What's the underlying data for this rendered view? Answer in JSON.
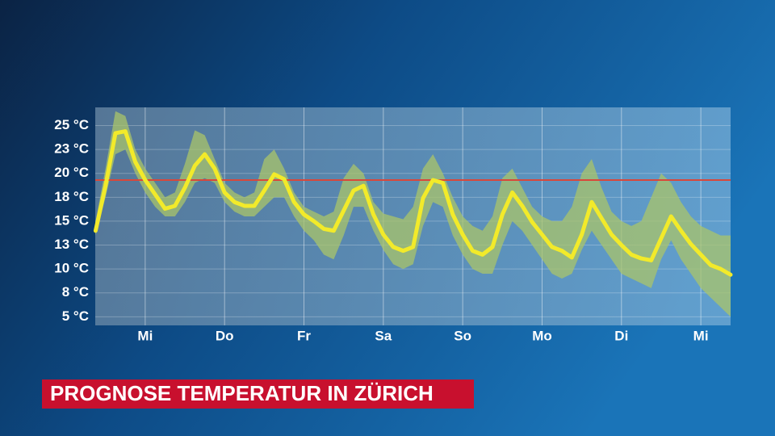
{
  "chart_data": {
    "type": "line",
    "title": "PROGNOSE TEMPERATUR IN ZÜRICH",
    "x": [
      9,
      12,
      15,
      18,
      21,
      24,
      27,
      30,
      33,
      36,
      39,
      42,
      45,
      48,
      51,
      54,
      57,
      60,
      63,
      66,
      69,
      72,
      75,
      78,
      81,
      84,
      87,
      90,
      93,
      96,
      99,
      102,
      105,
      108,
      111,
      114,
      117,
      120,
      123,
      126,
      129,
      132,
      135,
      138,
      141,
      144,
      147,
      150,
      153,
      156,
      159,
      162,
      165,
      168,
      171,
      174,
      177,
      180,
      183,
      186,
      189,
      192,
      195,
      198,
      201
    ],
    "xlim": [
      8.9,
      201
    ],
    "xticks": [
      {
        "value": 24,
        "label": "Mi"
      },
      {
        "value": 48,
        "label": "Do"
      },
      {
        "value": 72,
        "label": "Fr"
      },
      {
        "value": 96,
        "label": "Sa"
      },
      {
        "value": 120,
        "label": "So"
      },
      {
        "value": 144,
        "label": "Mo"
      },
      {
        "value": 168,
        "label": "Di"
      },
      {
        "value": 192,
        "label": "Mi"
      }
    ],
    "ylim": [
      4.1,
      26.9
    ],
    "yticks": [
      {
        "value": 25,
        "label": "25 °C"
      },
      {
        "value": 22.5,
        "label": "23 °C"
      },
      {
        "value": 20,
        "label": "20 °C"
      },
      {
        "value": 17.5,
        "label": "18 °C"
      },
      {
        "value": 15,
        "label": "15 °C"
      },
      {
        "value": 12.5,
        "label": "13 °C"
      },
      {
        "value": 10,
        "label": "10 °C"
      },
      {
        "value": 7.5,
        "label": "8 °C"
      },
      {
        "value": 5,
        "label": "5 °C"
      }
    ],
    "grid": true,
    "series": [
      {
        "color": "#f2ea2a",
        "values": [
          14.0,
          18.7,
          24.2,
          24.4,
          21.2,
          19.3,
          17.8,
          16.3,
          16.6,
          18.5,
          20.8,
          22.0,
          20.5,
          18.0,
          17.0,
          16.6,
          16.6,
          18.2,
          19.9,
          19.4,
          17.0,
          15.7,
          15.0,
          14.2,
          14.0,
          16.1,
          18.2,
          18.7,
          15.7,
          13.6,
          12.3,
          11.9,
          12.3,
          17.4,
          19.3,
          19.0,
          15.7,
          13.6,
          11.9,
          11.5,
          12.3,
          15.7,
          18.0,
          16.6,
          14.9,
          13.6,
          12.3,
          11.9,
          11.2,
          13.6,
          17.0,
          15.3,
          13.6,
          12.5,
          11.5,
          11.1,
          10.9,
          13.2,
          15.5,
          14.0,
          12.6,
          11.5,
          10.4,
          10.0,
          9.4
        ]
      }
    ],
    "band": {
      "color": "#a9c46a",
      "upper": [
        15.0,
        20.5,
        26.5,
        26.0,
        22.5,
        20.5,
        19.0,
        17.5,
        18.0,
        21.0,
        24.5,
        24.0,
        21.5,
        19.0,
        18.0,
        17.5,
        18.0,
        21.5,
        22.5,
        20.5,
        18.0,
        16.5,
        16.0,
        15.5,
        16.0,
        19.5,
        21.0,
        20.0,
        17.0,
        15.8,
        15.5,
        15.2,
        16.5,
        20.5,
        22.0,
        20.0,
        17.5,
        15.5,
        14.5,
        14.0,
        15.5,
        19.5,
        20.5,
        18.5,
        16.5,
        15.5,
        15.0,
        15.0,
        16.5,
        20.0,
        21.5,
        18.5,
        16.0,
        15.0,
        14.5,
        15.0,
        17.5,
        20.0,
        19.0,
        17.0,
        15.5,
        14.5,
        14.0,
        13.5,
        13.5
      ],
      "lower": [
        13.5,
        17.5,
        22.0,
        22.5,
        20.0,
        18.0,
        16.5,
        15.5,
        15.5,
        17.0,
        19.0,
        19.5,
        19.0,
        17.0,
        16.0,
        15.5,
        15.5,
        16.5,
        17.5,
        17.5,
        15.5,
        14.0,
        13.0,
        11.5,
        11.0,
        13.5,
        16.5,
        16.5,
        14.0,
        12.0,
        10.5,
        10.0,
        10.5,
        14.5,
        17.0,
        16.5,
        13.5,
        11.5,
        10.0,
        9.5,
        9.5,
        12.5,
        15.0,
        14.0,
        12.5,
        11.0,
        9.5,
        9.0,
        9.5,
        12.0,
        14.0,
        12.5,
        11.0,
        9.5,
        9.0,
        8.5,
        8.0,
        11.0,
        13.0,
        11.0,
        9.5,
        8.0,
        7.0,
        6.0,
        5.0
      ]
    },
    "reference_line": {
      "value": 19.3,
      "color": "#d9473a"
    }
  }
}
